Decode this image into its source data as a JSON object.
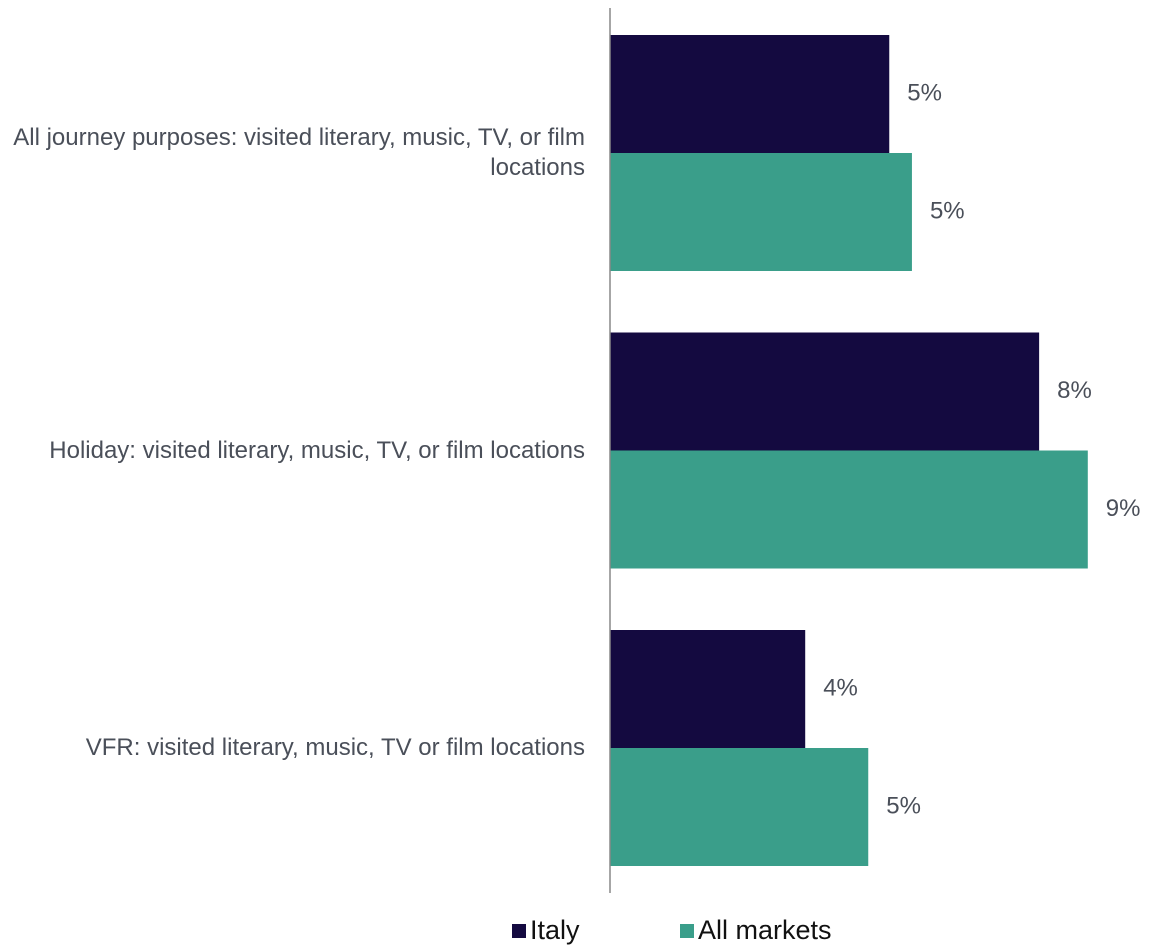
{
  "chart_data": {
    "type": "bar",
    "orientation": "horizontal",
    "categories": [
      "All journey purposes: visited literary, music, TV, or film locations",
      "Holiday: visited literary, music, TV, or film locations",
      "VFR: visited literary, music, TV or film locations"
    ],
    "series": [
      {
        "name": "Italy",
        "color": "#140a40",
        "values": [
          5.05,
          7.76,
          3.53
        ],
        "value_labels": [
          "5%",
          "8%",
          "4%"
        ]
      },
      {
        "name": "All markets",
        "color": "#3a9e8a",
        "values": [
          5.46,
          8.64,
          4.67
        ],
        "value_labels": [
          "5%",
          "9%",
          "5%"
        ]
      }
    ],
    "xlim": [
      0,
      10
    ],
    "legend": "bottom"
  }
}
